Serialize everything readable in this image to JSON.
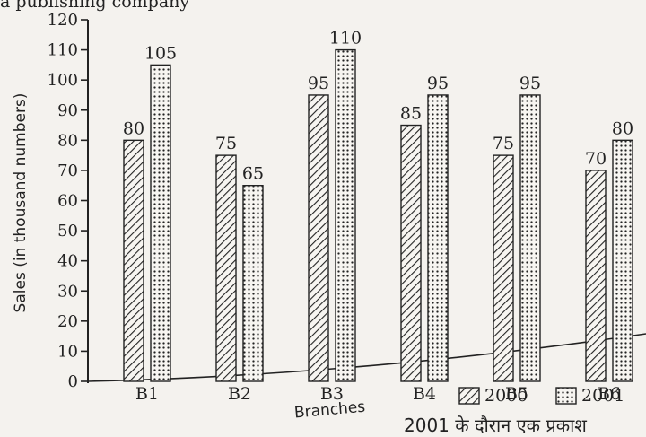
{
  "page": {
    "top_text": "a publishing company",
    "bottom_text": "2001 के दौरान एक प्रकाश"
  },
  "chart_data": {
    "type": "bar",
    "title": "",
    "xlabel": "Branches",
    "ylabel": "Sales (in thousand numbers)",
    "ylim": [
      0,
      120
    ],
    "yticks": [
      0,
      10,
      20,
      30,
      40,
      50,
      60,
      70,
      80,
      90,
      100,
      110,
      120
    ],
    "categories": [
      "B1",
      "B2",
      "B3",
      "B4",
      "B5",
      "B6"
    ],
    "series": [
      {
        "name": "2000",
        "pattern": "diagonal-hatch",
        "values": [
          80,
          75,
          95,
          85,
          75,
          70
        ]
      },
      {
        "name": "2001",
        "pattern": "dotted",
        "values": [
          105,
          65,
          110,
          95,
          95,
          80
        ]
      }
    ],
    "grid": false,
    "legend_position": "bottom-right",
    "colors": {
      "ink": "#222222",
      "background": "#f4f2ee"
    }
  }
}
